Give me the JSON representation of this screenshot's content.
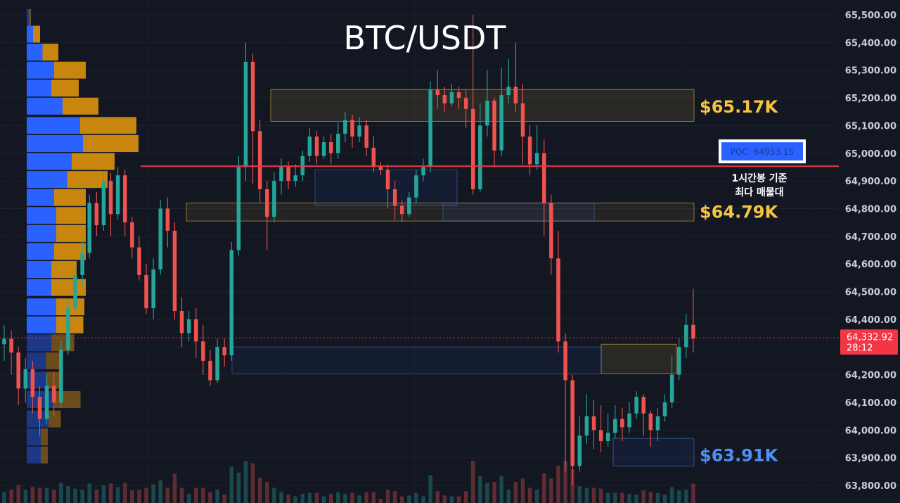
{
  "chart_data": {
    "type": "candlestick",
    "title": "BTC/USDT",
    "ylim": [
      63750,
      65550
    ],
    "y_ticks": [
      "65,500.00",
      "65,400.00",
      "65,300.00",
      "65,200.00",
      "65,100.00",
      "65,000.00",
      "64,900.00",
      "64,800.00",
      "64,700.00",
      "64,600.00",
      "64,500.00",
      "64,400.00",
      "64,300.00",
      "64,200.00",
      "64,100.00",
      "64,000.00",
      "63,900.00",
      "63,800.00"
    ],
    "y_tick_values": [
      65500,
      65400,
      65300,
      65200,
      65100,
      65000,
      64900,
      64800,
      64700,
      64600,
      64500,
      64400,
      64300,
      64200,
      64100,
      64000,
      63900,
      63800
    ],
    "current_price": {
      "label": "64,332.92",
      "value": 64332.92,
      "countdown": "28:12",
      "color": "#f23645"
    },
    "poc": {
      "label": "POC: 64953.15",
      "value": 64953.15,
      "color": "#f23645",
      "note_line1": "1시간봉 기준",
      "note_line2": "최다 매물대"
    },
    "zone_labels": [
      {
        "text": "$65.17K",
        "value": 65170,
        "color": "#f6c343"
      },
      {
        "text": "$64.79K",
        "value": 64790,
        "color": "#f6c343"
      },
      {
        "text": "$63.91K",
        "value": 63910,
        "color": "#4f8ff7"
      }
    ],
    "zones": [
      {
        "kind": "supply",
        "top": 65230,
        "bottom": 65115
      },
      {
        "kind": "supply",
        "top": 64820,
        "bottom": 64755
      },
      {
        "kind": "supply",
        "top": 64310,
        "bottom": 64205
      },
      {
        "kind": "demand",
        "top": 64940,
        "bottom": 64810
      },
      {
        "kind": "demand",
        "top": 64820,
        "bottom": 64755
      },
      {
        "kind": "demand",
        "top": 64300,
        "bottom": 64205
      },
      {
        "kind": "demand",
        "top": 63970,
        "bottom": 63870
      }
    ],
    "volume_profile": [
      {
        "price": 65490,
        "buy": 6,
        "sell": 6
      },
      {
        "price": 65430,
        "buy": 18,
        "sell": 20
      },
      {
        "price": 65365,
        "buy": 45,
        "sell": 45
      },
      {
        "price": 65300,
        "buy": 78,
        "sell": 90
      },
      {
        "price": 65235,
        "buy": 70,
        "sell": 78
      },
      {
        "price": 65170,
        "buy": 102,
        "sell": 102
      },
      {
        "price": 65100,
        "buy": 152,
        "sell": 160
      },
      {
        "price": 65035,
        "buy": 160,
        "sell": 158
      },
      {
        "price": 64970,
        "buy": 128,
        "sell": 122
      },
      {
        "price": 64905,
        "buy": 115,
        "sell": 115
      },
      {
        "price": 64840,
        "buy": 78,
        "sell": 90
      },
      {
        "price": 64775,
        "buy": 84,
        "sell": 84
      },
      {
        "price": 64710,
        "buy": 84,
        "sell": 84
      },
      {
        "price": 64645,
        "buy": 78,
        "sell": 90
      },
      {
        "price": 64580,
        "buy": 70,
        "sell": 72
      },
      {
        "price": 64515,
        "buy": 70,
        "sell": 98
      },
      {
        "price": 64445,
        "buy": 84,
        "sell": 80
      },
      {
        "price": 64380,
        "buy": 84,
        "sell": 77
      },
      {
        "price": 64315,
        "buy": 70,
        "sell": 65
      },
      {
        "price": 64250,
        "buy": 55,
        "sell": 45
      },
      {
        "price": 64180,
        "buy": 55,
        "sell": 45
      },
      {
        "price": 64110,
        "buy": 78,
        "sell": 75
      },
      {
        "price": 64040,
        "buy": 62,
        "sell": 35
      },
      {
        "price": 63975,
        "buy": 40,
        "sell": 20
      },
      {
        "price": 63910,
        "buy": 40,
        "sell": 20
      }
    ],
    "candles": [
      [
        64310,
        64330,
        64250,
        64380
      ],
      [
        64330,
        64280,
        64200,
        64360
      ],
      [
        64280,
        64150,
        64090,
        64300
      ],
      [
        64150,
        64220,
        64100,
        64260
      ],
      [
        64220,
        64120,
        64060,
        64250
      ],
      [
        64120,
        64040,
        63980,
        64160
      ],
      [
        64040,
        64160,
        64020,
        64200
      ],
      [
        64160,
        64100,
        64050,
        64210
      ],
      [
        64100,
        64290,
        64080,
        64320
      ],
      [
        64290,
        64440,
        64270,
        64470
      ],
      [
        64440,
        64560,
        64420,
        64590
      ],
      [
        64560,
        64640,
        64520,
        64680
      ],
      [
        64640,
        64820,
        64620,
        64850
      ],
      [
        64820,
        64740,
        64700,
        64860
      ],
      [
        64740,
        64900,
        64720,
        64930
      ],
      [
        64900,
        64780,
        64700,
        64930
      ],
      [
        64780,
        64920,
        64760,
        64950
      ],
      [
        64920,
        64750,
        64700,
        64940
      ],
      [
        64750,
        64660,
        64620,
        64770
      ],
      [
        64660,
        64560,
        64540,
        64700
      ],
      [
        64560,
        64440,
        64420,
        64600
      ],
      [
        64440,
        64580,
        64400,
        64620
      ],
      [
        64580,
        64800,
        64560,
        64830
      ],
      [
        64800,
        64720,
        64660,
        64840
      ],
      [
        64720,
        64430,
        64400,
        64750
      ],
      [
        64430,
        64350,
        64300,
        64480
      ],
      [
        64350,
        64400,
        64320,
        64430
      ],
      [
        64400,
        64320,
        64260,
        64440
      ],
      [
        64320,
        64250,
        64200,
        64380
      ],
      [
        64250,
        64180,
        64160,
        64290
      ],
      [
        64180,
        64300,
        64170,
        64330
      ],
      [
        64300,
        64270,
        64230,
        64330
      ],
      [
        64270,
        64650,
        64250,
        64680
      ],
      [
        64650,
        64950,
        64630,
        64990
      ],
      [
        64950,
        65330,
        64900,
        65400
      ],
      [
        65330,
        65080,
        64890,
        65360
      ],
      [
        65080,
        64870,
        64820,
        65120
      ],
      [
        64870,
        64770,
        64650,
        64900
      ],
      [
        64770,
        64900,
        64750,
        64930
      ],
      [
        64900,
        64950,
        64850,
        64980
      ],
      [
        64950,
        64900,
        64870,
        64970
      ],
      [
        64900,
        64920,
        64880,
        64960
      ],
      [
        64920,
        64990,
        64900,
        65010
      ],
      [
        64990,
        65060,
        64970,
        65090
      ],
      [
        65060,
        64990,
        64960,
        65080
      ],
      [
        64990,
        65040,
        64980,
        65060
      ],
      [
        65040,
        65000,
        64960,
        65070
      ],
      [
        65000,
        65070,
        64980,
        65110
      ],
      [
        65070,
        65120,
        65040,
        65150
      ],
      [
        65120,
        65060,
        65020,
        65140
      ],
      [
        65060,
        65100,
        65040,
        65130
      ],
      [
        65100,
        65020,
        64990,
        65120
      ],
      [
        65020,
        64950,
        64930,
        65060
      ],
      [
        64950,
        64940,
        64920,
        64970
      ],
      [
        64940,
        64870,
        64800,
        64960
      ],
      [
        64870,
        64810,
        64760,
        64900
      ],
      [
        64810,
        64780,
        64750,
        64830
      ],
      [
        64780,
        64840,
        64770,
        64860
      ],
      [
        64840,
        64920,
        64820,
        64940
      ],
      [
        64920,
        64950,
        64900,
        64980
      ],
      [
        64950,
        65230,
        64930,
        65260
      ],
      [
        65230,
        65210,
        65160,
        65300
      ],
      [
        65210,
        65180,
        65150,
        65240
      ],
      [
        65180,
        65220,
        65170,
        65250
      ],
      [
        65220,
        65200,
        65160,
        65240
      ],
      [
        65200,
        65160,
        65090,
        65230
      ],
      [
        65160,
        64870,
        64850,
        65500
      ],
      [
        64870,
        65100,
        64860,
        65180
      ],
      [
        65100,
        65190,
        65060,
        65300
      ],
      [
        65190,
        65010,
        64950,
        65200
      ],
      [
        65010,
        65210,
        64990,
        65310
      ],
      [
        65210,
        65240,
        65180,
        65340
      ],
      [
        65240,
        65180,
        65150,
        65400
      ],
      [
        65180,
        65060,
        64960,
        65250
      ],
      [
        65060,
        64960,
        64920,
        65100
      ],
      [
        64960,
        65000,
        64940,
        65100
      ],
      [
        65000,
        64820,
        64700,
        65050
      ],
      [
        64820,
        64620,
        64560,
        64850
      ],
      [
        64620,
        64320,
        64280,
        64720
      ],
      [
        64320,
        64180,
        63850,
        64350
      ],
      [
        64180,
        63870,
        63800,
        64200
      ],
      [
        63870,
        63980,
        63850,
        64050
      ],
      [
        63980,
        64050,
        63950,
        64130
      ],
      [
        64050,
        64000,
        63930,
        64110
      ],
      [
        64000,
        63960,
        63920,
        64090
      ],
      [
        63960,
        63990,
        63940,
        64060
      ],
      [
        63990,
        64040,
        63970,
        64090
      ],
      [
        64040,
        64010,
        63960,
        64080
      ],
      [
        64010,
        64060,
        63990,
        64100
      ],
      [
        64060,
        64120,
        64040,
        64140
      ],
      [
        64120,
        64060,
        63980,
        64130
      ],
      [
        64060,
        64000,
        63940,
        64070
      ],
      [
        64000,
        64050,
        63960,
        64080
      ],
      [
        64050,
        64100,
        64030,
        64130
      ],
      [
        64100,
        64200,
        64080,
        64270
      ],
      [
        64200,
        64300,
        64180,
        64330
      ],
      [
        64300,
        64380,
        64260,
        64420
      ],
      [
        64380,
        64330,
        64280,
        64510
      ]
    ]
  }
}
